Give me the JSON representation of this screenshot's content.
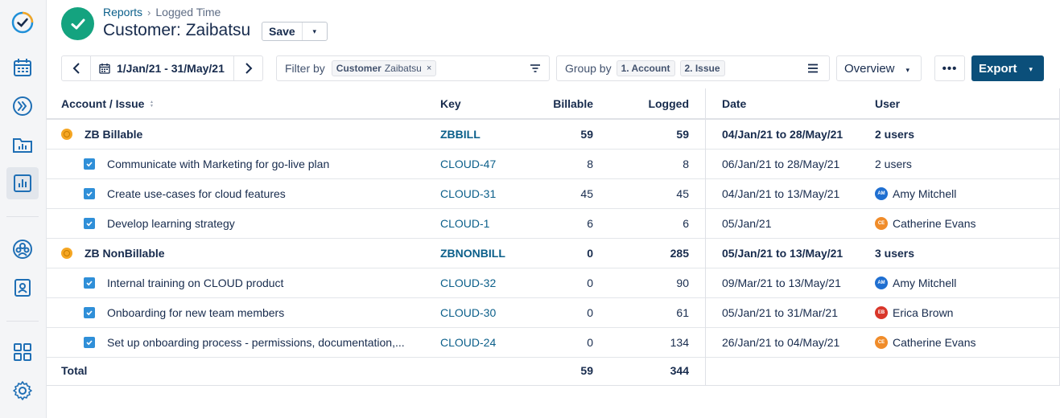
{
  "header": {
    "breadcrumb_parent": "Reports",
    "breadcrumb_sep": "›",
    "breadcrumb_current": "Logged Time",
    "title": "Customer: Zaibatsu",
    "save_label": "Save",
    "caret": "▾"
  },
  "toolbar": {
    "date_range": "1/Jan/21 - 31/May/21",
    "filter_label": "Filter by",
    "filter_chip_key": "Customer",
    "filter_chip_value": "Zaibatsu",
    "filter_chip_remove": "×",
    "group_label": "Group by",
    "group_chips": [
      "1. Account",
      "2. Issue"
    ],
    "view_label": "Overview",
    "more_label": "•••",
    "export_label": "Export",
    "caret": "▾",
    "prev": "‹",
    "next": "›"
  },
  "table": {
    "headers": {
      "issue": "Account / Issue",
      "sort": "▲▼",
      "key": "Key",
      "billable": "Billable",
      "logged": "Logged",
      "date": "Date",
      "user": "User"
    },
    "rows": [
      {
        "type": "group",
        "issue": "ZB Billable",
        "key": "ZBBILL",
        "billable": "59",
        "logged": "59",
        "date": "04/Jan/21 to 28/May/21",
        "user": "2 users"
      },
      {
        "type": "item",
        "issue": "Communicate with Marketing for go-live plan",
        "key": "CLOUD-47",
        "billable": "8",
        "logged": "8",
        "date": "06/Jan/21 to 28/May/21",
        "user": "2 users"
      },
      {
        "type": "item",
        "issue": "Create use-cases for cloud features",
        "key": "CLOUD-31",
        "billable": "45",
        "logged": "45",
        "date": "04/Jan/21 to 13/May/21",
        "user": "Amy Mitchell",
        "avatar": "AM",
        "avatar_color": "#1f6fd1"
      },
      {
        "type": "item",
        "issue": "Develop learning strategy",
        "key": "CLOUD-1",
        "billable": "6",
        "logged": "6",
        "date": "05/Jan/21",
        "user": "Catherine Evans",
        "avatar": "CE",
        "avatar_color": "#f08c2a"
      },
      {
        "type": "group",
        "issue": "ZB NonBillable",
        "key": "ZBNONBILL",
        "billable": "0",
        "logged": "285",
        "date": "05/Jan/21 to 13/May/21",
        "user": "3 users"
      },
      {
        "type": "item",
        "issue": "Internal training on CLOUD product",
        "key": "CLOUD-32",
        "billable": "0",
        "logged": "90",
        "date": "09/Mar/21 to 13/May/21",
        "user": "Amy Mitchell",
        "avatar": "AM",
        "avatar_color": "#1f6fd1"
      },
      {
        "type": "item",
        "issue": "Onboarding for new team members",
        "key": "CLOUD-30",
        "billable": "0",
        "logged": "61",
        "date": "05/Jan/21 to 31/Mar/21",
        "user": "Erica Brown",
        "avatar": "EB",
        "avatar_color": "#d9362a"
      },
      {
        "type": "item",
        "issue": "Set up onboarding process - permissions, documentation,...",
        "key": "CLOUD-24",
        "billable": "0",
        "logged": "134",
        "date": "26/Jan/21 to 04/May/21",
        "user": "Catherine Evans",
        "avatar": "CE",
        "avatar_color": "#f08c2a"
      }
    ],
    "total": {
      "label": "Total",
      "billable": "59",
      "logged": "344"
    }
  },
  "colors": {
    "accent": "#0b4f7a",
    "brand": "#14a37f",
    "link": "#0b5f8a"
  }
}
